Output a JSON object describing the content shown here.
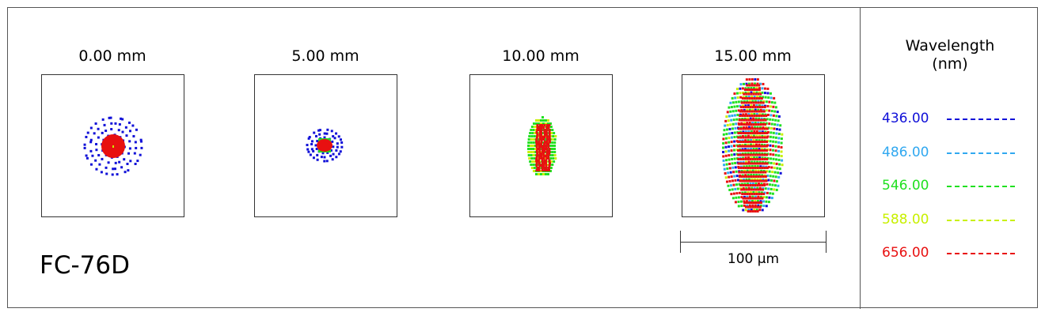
{
  "fields": [
    {
      "label": "0.00 mm"
    },
    {
      "label": "5.00 mm"
    },
    {
      "label": "10.00 mm"
    },
    {
      "label": "15.00 mm"
    }
  ],
  "scale_bar": {
    "label": "100 µm"
  },
  "lens_name": "FC-76D",
  "legend": {
    "title_line1": "Wavelength",
    "title_line2": "(nm)",
    "items": [
      {
        "label": "436.00",
        "color": "#1010d8"
      },
      {
        "label": "486.00",
        "color": "#30a8f0"
      },
      {
        "label": "546.00",
        "color": "#20e020"
      },
      {
        "label": "588.00",
        "color": "#c8f000"
      },
      {
        "label": "656.00",
        "color": "#e81010"
      }
    ]
  }
}
